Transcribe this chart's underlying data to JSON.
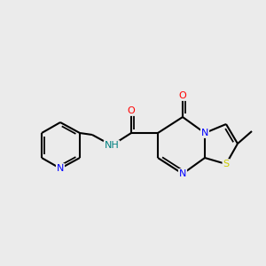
{
  "background_color": "#ebebeb",
  "bond_color": "#000000",
  "atom_colors": {
    "N": "#0000ff",
    "O": "#ff0000",
    "S": "#cccc00",
    "C": "#000000",
    "H": "#008080"
  },
  "figsize": [
    3.0,
    3.0
  ],
  "dpi": 100,
  "lw": 1.5,
  "fs": 8.0
}
